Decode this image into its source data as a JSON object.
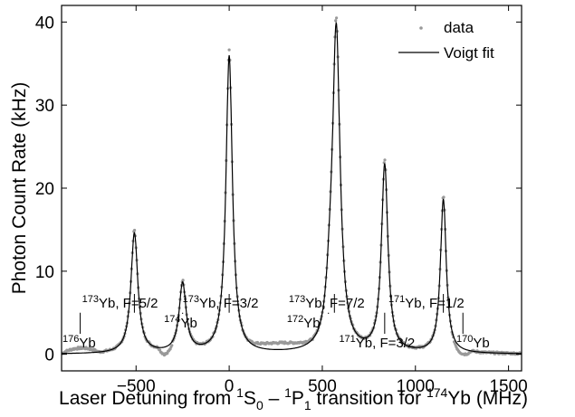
{
  "chart_data": {
    "type": "line",
    "xlabel": "Laser Detuning from ¹S₀ – ¹P₁ transition for ¹⁷⁴Yb (MHz)",
    "xlabel_parts": {
      "prefix": "Laser Detuning from ",
      "s_sup": "1",
      "s": "S",
      "s_sub": "0",
      "dash": " – ",
      "p_sup": "1",
      "p": "P",
      "p_sub": "1",
      "mid": " transition for ",
      "yb_sup": "174",
      "yb": "Yb",
      "suffix": " (MHz)"
    },
    "ylabel": "Photon Count Rate (kHz)",
    "xlim": [
      -900,
      1570
    ],
    "ylim": [
      -2,
      42
    ],
    "xticks": [
      -500,
      0,
      500,
      1000,
      1500
    ],
    "yticks": [
      0,
      10,
      20,
      30,
      40
    ],
    "xtick_labels": [
      "−500",
      "0",
      "500",
      "1000",
      "1500"
    ],
    "ytick_labels": [
      "0",
      "10",
      "20",
      "30",
      "40"
    ],
    "legend": {
      "placement": "top-right",
      "entries": [
        {
          "label": "data",
          "marker": "dot",
          "color": "#999999"
        },
        {
          "label": "Voigt fit",
          "marker": "line",
          "color": "#000000"
        }
      ]
    },
    "series": [
      {
        "name": "data",
        "style": "points",
        "color": "#999999"
      },
      {
        "name": "Voigt fit",
        "style": "line",
        "color": "#000000"
      }
    ],
    "peaks": [
      {
        "center": -509,
        "height": 14.5,
        "width": 45
      },
      {
        "center": -250,
        "height": 8.3,
        "width": 45
      },
      {
        "center": 0,
        "height": 35.8,
        "width": 42
      },
      {
        "center": 575,
        "height": 38.5,
        "width": 50
      },
      {
        "center": 540,
        "height": 4.0,
        "width": 45
      },
      {
        "center": 835,
        "height": 22.5,
        "width": 42
      },
      {
        "center": 1150,
        "height": 18.5,
        "width": 38
      }
    ],
    "baseline": 0.0,
    "data_offset_regions": [
      {
        "from": -900,
        "to": -700,
        "offset": 0.6
      },
      {
        "from": -380,
        "to": -300,
        "offset": -0.9
      },
      {
        "from": 100,
        "to": 450,
        "offset": 0.8
      },
      {
        "from": 1190,
        "to": 1300,
        "offset": -0.7
      }
    ],
    "isotope_labels": [
      {
        "sup": "176",
        "name": "Yb",
        "detail": "",
        "row": 3,
        "line_x": -800,
        "label_x": -895
      },
      {
        "sup": "173",
        "name": "Yb",
        "detail": ", F=5/2",
        "row": 1,
        "line_x": -509,
        "label_x": -790
      },
      {
        "sup": "174",
        "name": "Yb",
        "detail": "",
        "row": 2,
        "line_x": -250,
        "label_x": -350
      },
      {
        "sup": "173",
        "name": "Yb",
        "detail": ", F=3/2",
        "row": 1,
        "line_x": 0,
        "label_x": -250
      },
      {
        "sup": "172",
        "name": "Yb",
        "detail": "",
        "row": 2,
        "line_x": 533,
        "label_x": 310
      },
      {
        "sup": "173",
        "name": "Yb",
        "detail": ", F=7/2",
        "row": 1,
        "line_x": 565,
        "label_x": 320
      },
      {
        "sup": "171",
        "name": "Yb",
        "detail": ", F=3/2",
        "row": 3,
        "line_x": 835,
        "label_x": 590
      },
      {
        "sup": "171",
        "name": "Yb",
        "detail": ", F=1/2",
        "row": 1,
        "line_x": 1150,
        "label_x": 855
      },
      {
        "sup": "170",
        "name": "Yb",
        "detail": "",
        "row": 3,
        "line_x": 1255,
        "label_x": 1220
      }
    ],
    "grid": false
  }
}
